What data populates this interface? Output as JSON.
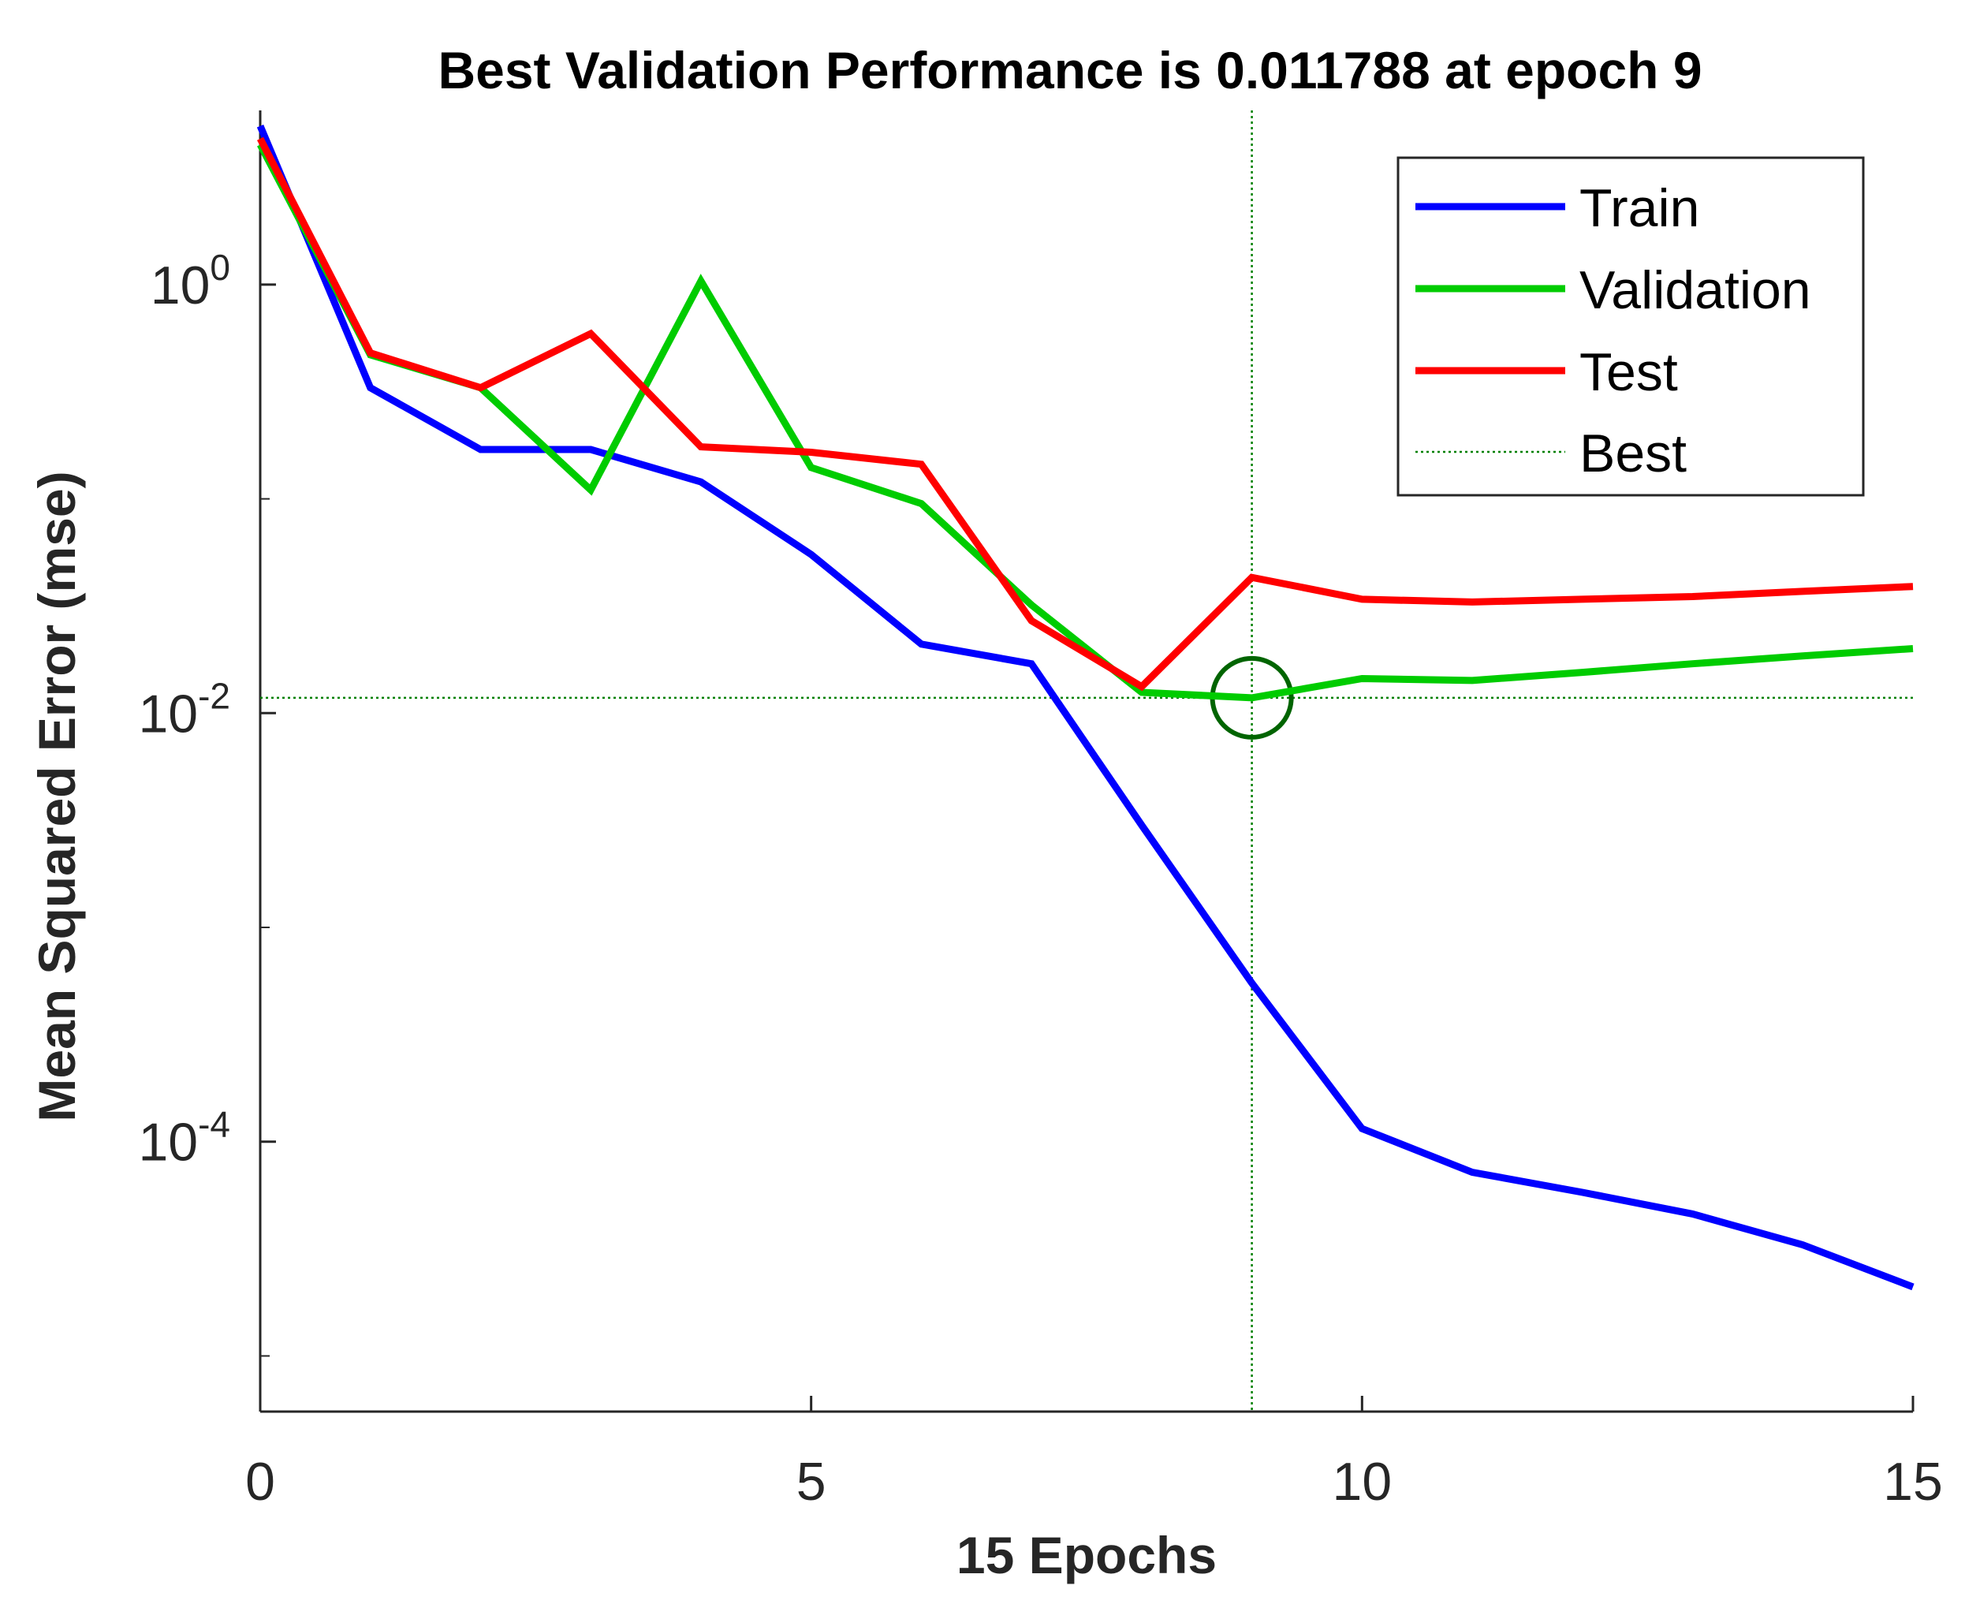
{
  "chart_data": {
    "type": "line",
    "title": "Best Validation Performance is 0.011788 at epoch 9",
    "xlabel": "15 Epochs",
    "ylabel": "Mean Squared Error  (mse)",
    "xlim": [
      0,
      15
    ],
    "ylim": [
      5.5e-06,
      6.5
    ],
    "yscale": "log",
    "x": [
      0,
      1,
      2,
      3,
      4,
      5,
      6,
      7,
      8,
      9,
      10,
      11,
      12,
      13,
      14,
      15
    ],
    "xticks": [
      "0",
      "5",
      "10",
      "15"
    ],
    "xtick_values": [
      0,
      5,
      10,
      15
    ],
    "yticks": [
      {
        "value": 1,
        "base": "10",
        "exp": "0"
      },
      {
        "value": 0.01,
        "base": "10",
        "exp": "-2"
      },
      {
        "value": 0.0001,
        "base": "10",
        "exp": "-4"
      }
    ],
    "series": [
      {
        "name": "Train",
        "color": "#0000ff",
        "values": [
          5.5,
          0.33,
          0.17,
          0.17,
          0.12,
          0.055,
          0.021,
          0.017,
          0.003,
          0.00055,
          0.000115,
          7.2e-05,
          5.8e-05,
          4.6e-05,
          3.3e-05,
          2.1e-05
        ]
      },
      {
        "name": "Validation",
        "color": "#00cc00",
        "values": [
          4.5,
          0.47,
          0.33,
          0.11,
          1.04,
          0.14,
          0.095,
          0.032,
          0.0125,
          0.011788,
          0.0145,
          0.0142,
          0.0155,
          0.017,
          0.0185,
          0.02
        ]
      },
      {
        "name": "Test",
        "color": "#ff0000",
        "values": [
          4.8,
          0.48,
          0.33,
          0.59,
          0.175,
          0.165,
          0.145,
          0.027,
          0.0133,
          0.043,
          0.034,
          0.033,
          0.034,
          0.035,
          0.037,
          0.039
        ]
      }
    ],
    "best": {
      "epoch": 9,
      "value": 0.011788,
      "name": "Best",
      "color": "#008000"
    },
    "legend": {
      "position": "top-right",
      "entries": [
        "Train",
        "Validation",
        "Test",
        "Best"
      ]
    }
  }
}
